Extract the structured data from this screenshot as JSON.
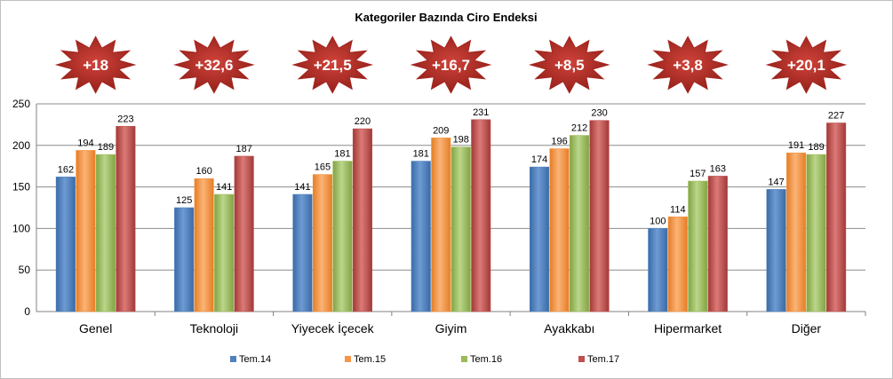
{
  "chart_data": {
    "type": "bar",
    "title": "Kategoriler Bazında Ciro Endeksi",
    "xlabel": "",
    "ylabel": "",
    "ylim": [
      0,
      250
    ],
    "yticks": [
      0,
      50,
      100,
      150,
      200,
      250
    ],
    "grid": true,
    "legend_position": "bottom",
    "categories": [
      "Genel",
      "Teknoloji",
      "Yiyecek İçecek",
      "Giyim",
      "Ayakkabı",
      "Hipermarket",
      "Diğer"
    ],
    "series": [
      {
        "name": "Tem.14",
        "color": "#4f81bd",
        "values": [
          162,
          125,
          141,
          181,
          174,
          100,
          147
        ]
      },
      {
        "name": "Tem.15",
        "color": "#f79646",
        "values": [
          194,
          160,
          165,
          209,
          196,
          114,
          191
        ]
      },
      {
        "name": "Tem.16",
        "color": "#9bbb59",
        "values": [
          189,
          141,
          181,
          198,
          212,
          157,
          189
        ]
      },
      {
        "name": "Tem.17",
        "color": "#c0504d",
        "values": [
          223,
          187,
          220,
          231,
          230,
          163,
          227
        ]
      }
    ],
    "annotations": [
      "+18",
      "+32,6",
      "+21,5",
      "+16,7",
      "+8,5",
      "+3,8",
      "+20,1"
    ],
    "annotation_color": "#a5261f"
  }
}
